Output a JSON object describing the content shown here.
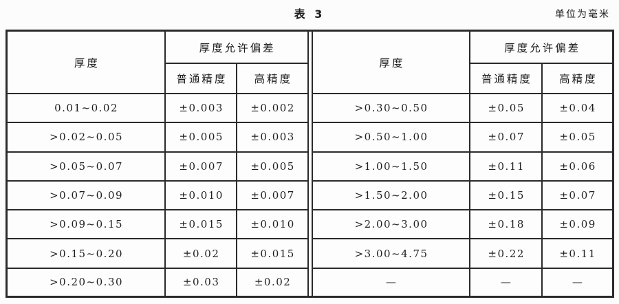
{
  "page": {
    "title": "表 3",
    "unit_note": "单位为毫米"
  },
  "colors": {
    "border": "#2a2a2a",
    "text": "#1e1e1e",
    "background": "#fcfcfc"
  },
  "tables": [
    {
      "header": {
        "thickness": "厚度",
        "deviation": "厚度允许偏差",
        "normal": "普通精度",
        "high": "高精度"
      },
      "rows": [
        [
          "0.01~0.02",
          "±0.003",
          "±0.002"
        ],
        [
          ">0.02~0.05",
          "±0.005",
          "±0.003"
        ],
        [
          ">0.05~0.07",
          "±0.007",
          "±0.005"
        ],
        [
          ">0.07~0.09",
          "±0.010",
          "±0.007"
        ],
        [
          ">0.09~0.15",
          "±0.015",
          "±0.010"
        ],
        [
          ">0.15~0.20",
          "±0.02",
          "±0.015"
        ],
        [
          ">0.20~0.30",
          "±0.03",
          "±0.02"
        ]
      ]
    },
    {
      "header": {
        "thickness": "厚度",
        "deviation": "厚度允许偏差",
        "normal": "普通精度",
        "high": "高精度"
      },
      "rows": [
        [
          ">0.30~0.50",
          "±0.05",
          "±0.04"
        ],
        [
          ">0.50~1.00",
          "±0.07",
          "±0.05"
        ],
        [
          ">1.00~1.50",
          "±0.11",
          "±0.06"
        ],
        [
          ">1.50~2.00",
          "±0.15",
          "±0.07"
        ],
        [
          ">2.00~3.00",
          "±0.18",
          "±0.09"
        ],
        [
          ">3.00~4.75",
          "±0.22",
          "±0.11"
        ],
        [
          "—",
          "—",
          "—"
        ]
      ]
    }
  ]
}
